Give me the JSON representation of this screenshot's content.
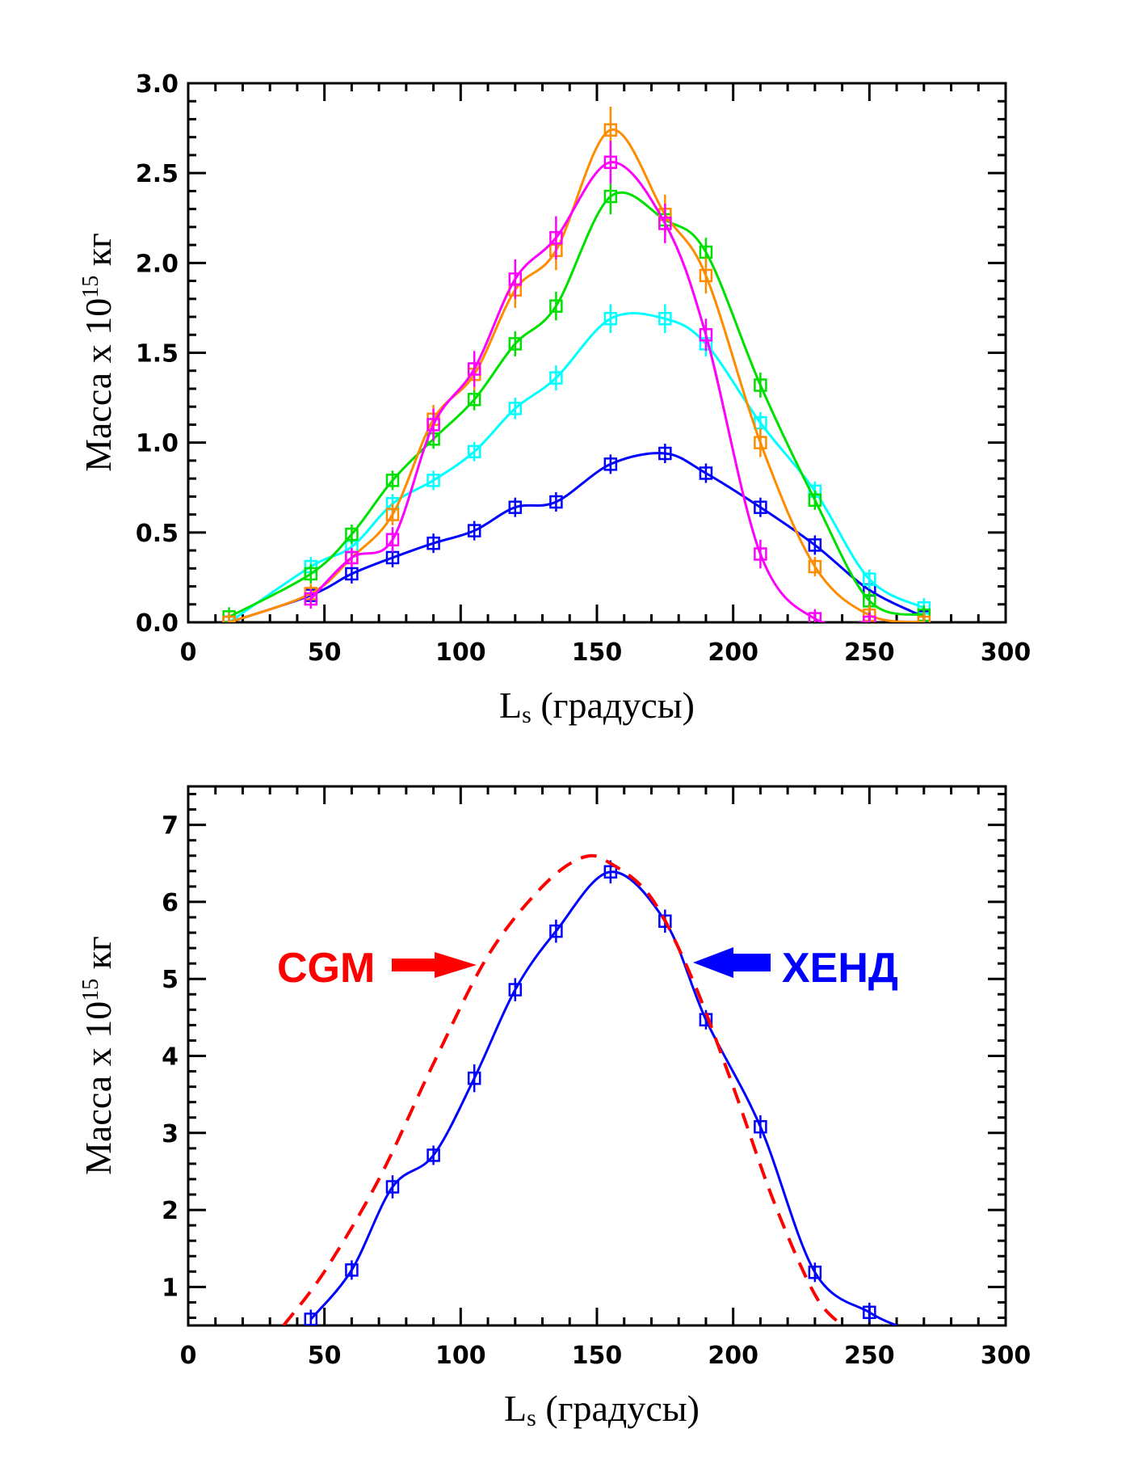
{
  "chart_data": [
    {
      "type": "line",
      "xlabel": "L",
      "xlabel_sub": "s",
      "xlabel_rest": " (градусы)",
      "ylabel": "Масса х 10",
      "ylabel_sup": "15",
      "ylabel_rest": " кг",
      "xlim": [
        0,
        300
      ],
      "ylim": [
        0,
        3.0
      ],
      "xticks": [
        "0",
        "50",
        "100",
        "150",
        "200",
        "250",
        "300"
      ],
      "yticks": [
        "0.0",
        "0.5",
        "1.0",
        "1.5",
        "2.0",
        "2.5",
        "3.0"
      ],
      "series": [
        {
          "color": "#0000ff",
          "x": [
            15,
            45,
            60,
            75,
            90,
            105,
            120,
            135,
            155,
            175,
            190,
            210,
            230,
            250,
            270
          ],
          "y": [
            0.0,
            0.15,
            0.27,
            0.36,
            0.44,
            0.51,
            0.64,
            0.67,
            0.88,
            0.94,
            0.83,
            0.64,
            0.43,
            0.18,
            0.03
          ],
          "err": [
            0.02,
            0.03,
            0.03,
            0.03,
            0.03,
            0.03,
            0.03,
            0.03,
            0.04,
            0.04,
            0.03,
            0.03,
            0.03,
            0.03,
            0.02
          ]
        },
        {
          "color": "#00ffff",
          "x": [
            15,
            45,
            60,
            75,
            90,
            105,
            120,
            135,
            155,
            175,
            190,
            210,
            230,
            250,
            270
          ],
          "y": [
            0.0,
            0.31,
            0.42,
            0.66,
            0.79,
            0.95,
            1.19,
            1.36,
            1.69,
            1.69,
            1.55,
            1.11,
            0.73,
            0.24,
            0.08
          ],
          "err": [
            0.02,
            0.04,
            0.05,
            0.05,
            0.05,
            0.05,
            0.06,
            0.07,
            0.08,
            0.08,
            0.07,
            0.06,
            0.05,
            0.04,
            0.02
          ]
        },
        {
          "color": "#00e000",
          "x": [
            15,
            45,
            60,
            75,
            90,
            105,
            120,
            135,
            155,
            175,
            190,
            210,
            230,
            250,
            270
          ],
          "y": [
            0.03,
            0.27,
            0.49,
            0.79,
            1.02,
            1.24,
            1.55,
            1.76,
            2.37,
            2.24,
            2.06,
            1.32,
            0.68,
            0.12,
            0.04
          ],
          "err": [
            0.02,
            0.04,
            0.05,
            0.05,
            0.05,
            0.06,
            0.07,
            0.08,
            0.1,
            0.09,
            0.08,
            0.07,
            0.05,
            0.03,
            0.02
          ]
        },
        {
          "color": "#ff8c00",
          "x": [
            15,
            45,
            60,
            75,
            90,
            105,
            120,
            135,
            155,
            175,
            190,
            210,
            230,
            250,
            270
          ],
          "y": [
            0.0,
            0.16,
            0.36,
            0.6,
            1.13,
            1.38,
            1.85,
            2.07,
            2.74,
            2.27,
            1.93,
            1.0,
            0.31,
            0.04,
            0.0
          ],
          "err": [
            0.02,
            0.04,
            0.05,
            0.06,
            0.08,
            0.09,
            0.1,
            0.11,
            0.13,
            0.11,
            0.1,
            0.08,
            0.05,
            0.03,
            0.02
          ]
        },
        {
          "color": "#ff00ff",
          "x": [
            45,
            60,
            75,
            90,
            105,
            120,
            135,
            155,
            175,
            190,
            210,
            230,
            250
          ],
          "y": [
            0.13,
            0.36,
            0.46,
            1.1,
            1.41,
            1.91,
            2.14,
            2.56,
            2.22,
            1.6,
            0.38,
            0.02,
            0.0
          ],
          "err": [
            0.03,
            0.05,
            0.07,
            0.09,
            0.1,
            0.11,
            0.12,
            0.12,
            0.11,
            0.09,
            0.08,
            0.03,
            0.02
          ]
        }
      ]
    },
    {
      "type": "line",
      "xlabel": "L",
      "xlabel_sub": "s",
      "xlabel_rest": " (градусы)",
      "ylabel": "Масса х 10",
      "ylabel_sup": "15",
      "ylabel_rest": " кг",
      "xlim": [
        0,
        300
      ],
      "ylim": [
        0.5,
        7.5
      ],
      "xticks": [
        "0",
        "50",
        "100",
        "150",
        "200",
        "250",
        "300"
      ],
      "yticks": [
        "1",
        "2",
        "3",
        "4",
        "5",
        "6",
        "7"
      ],
      "series": [
        {
          "name": "ХЕНД",
          "color": "#0000ff",
          "style": "solid",
          "x": [
            45,
            60,
            75,
            90,
            105,
            120,
            135,
            155,
            175,
            190,
            210,
            230,
            250,
            260
          ],
          "y": [
            0.58,
            1.22,
            2.3,
            2.71,
            3.71,
            4.86,
            5.62,
            6.39,
            5.75,
            4.47,
            3.08,
            1.19,
            0.67,
            0.5
          ],
          "err": [
            0.05,
            0.08,
            0.15,
            0.12,
            0.18,
            0.15,
            0.15,
            0.15,
            0.15,
            0.12,
            0.15,
            0.08,
            0.05,
            0
          ],
          "markers": [
            45,
            60,
            75,
            90,
            105,
            120,
            135,
            155,
            175,
            190,
            210,
            230,
            250
          ]
        },
        {
          "name": "CGM",
          "color": "#ff0000",
          "style": "dashed",
          "x": [
            35,
            50,
            70,
            90,
            110,
            130,
            145,
            155,
            170,
            185,
            200,
            215,
            230,
            240
          ],
          "y": [
            0.5,
            1.2,
            2.4,
            3.9,
            5.3,
            6.2,
            6.58,
            6.5,
            6.05,
            5.0,
            3.6,
            2.1,
            0.9,
            0.5
          ]
        }
      ],
      "annotations": [
        {
          "text": "CGM",
          "color": "#ff0000"
        },
        {
          "text": "ХЕНД",
          "color": "#0000ff"
        }
      ]
    }
  ]
}
